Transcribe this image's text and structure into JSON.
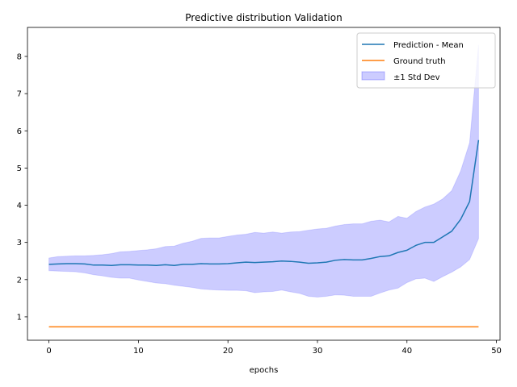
{
  "chart_data": {
    "type": "line",
    "title": "Predictive distribution Validation",
    "xlabel": "epochs",
    "ylabel": "",
    "xlim": [
      -2.4,
      50.4
    ],
    "ylim": [
      0.37,
      8.78
    ],
    "xticks": [
      0,
      10,
      20,
      30,
      40,
      50
    ],
    "yticks": [
      1,
      2,
      3,
      4,
      5,
      6,
      7,
      8
    ],
    "grid": false,
    "legend_position": "top-right",
    "x": [
      0,
      1,
      2,
      3,
      4,
      5,
      6,
      7,
      8,
      9,
      10,
      11,
      12,
      13,
      14,
      15,
      16,
      17,
      18,
      19,
      20,
      21,
      22,
      23,
      24,
      25,
      26,
      27,
      28,
      29,
      30,
      31,
      32,
      33,
      34,
      35,
      36,
      37,
      38,
      39,
      40,
      41,
      42,
      43,
      44,
      45,
      46,
      47,
      48
    ],
    "series": [
      {
        "name": "Prediction - Mean",
        "color": "#1f77b4",
        "values": [
          2.41,
          2.42,
          2.43,
          2.43,
          2.42,
          2.39,
          2.39,
          2.38,
          2.4,
          2.4,
          2.39,
          2.39,
          2.38,
          2.4,
          2.38,
          2.41,
          2.41,
          2.43,
          2.42,
          2.42,
          2.43,
          2.45,
          2.47,
          2.46,
          2.47,
          2.48,
          2.5,
          2.49,
          2.47,
          2.44,
          2.45,
          2.47,
          2.52,
          2.54,
          2.53,
          2.53,
          2.57,
          2.62,
          2.64,
          2.73,
          2.79,
          2.92,
          3.0,
          3.0,
          3.15,
          3.3,
          3.62,
          4.1,
          5.75
        ]
      },
      {
        "name": "Ground truth",
        "color": "#ff7f0e",
        "values": [
          0.73,
          0.73,
          0.73,
          0.73,
          0.73,
          0.73,
          0.73,
          0.73,
          0.73,
          0.73,
          0.73,
          0.73,
          0.73,
          0.73,
          0.73,
          0.73,
          0.73,
          0.73,
          0.73,
          0.73,
          0.73,
          0.73,
          0.73,
          0.73,
          0.73,
          0.73,
          0.73,
          0.73,
          0.73,
          0.73,
          0.73,
          0.73,
          0.73,
          0.73,
          0.73,
          0.73,
          0.73,
          0.73,
          0.73,
          0.73,
          0.73,
          0.73,
          0.73,
          0.73,
          0.73,
          0.73,
          0.73,
          0.73,
          0.73
        ]
      }
    ],
    "band": {
      "name": "±1 Std Dev",
      "color": "#0000ff",
      "upper": [
        2.58,
        2.62,
        2.63,
        2.64,
        2.64,
        2.65,
        2.67,
        2.7,
        2.75,
        2.76,
        2.78,
        2.8,
        2.83,
        2.89,
        2.9,
        2.98,
        3.03,
        3.11,
        3.12,
        3.12,
        3.16,
        3.2,
        3.22,
        3.27,
        3.25,
        3.28,
        3.25,
        3.28,
        3.29,
        3.33,
        3.36,
        3.38,
        3.44,
        3.48,
        3.5,
        3.5,
        3.57,
        3.6,
        3.55,
        3.7,
        3.65,
        3.83,
        3.95,
        4.03,
        4.17,
        4.39,
        4.92,
        5.68,
        8.31
      ],
      "lower": [
        2.24,
        2.23,
        2.22,
        2.21,
        2.18,
        2.13,
        2.1,
        2.06,
        2.04,
        2.04,
        1.99,
        1.95,
        1.91,
        1.89,
        1.85,
        1.82,
        1.79,
        1.75,
        1.73,
        1.72,
        1.71,
        1.71,
        1.7,
        1.65,
        1.67,
        1.68,
        1.72,
        1.67,
        1.63,
        1.55,
        1.53,
        1.55,
        1.59,
        1.58,
        1.55,
        1.55,
        1.55,
        1.64,
        1.72,
        1.77,
        1.92,
        2.02,
        2.04,
        1.95,
        2.08,
        2.2,
        2.34,
        2.54,
        3.1
      ]
    }
  }
}
